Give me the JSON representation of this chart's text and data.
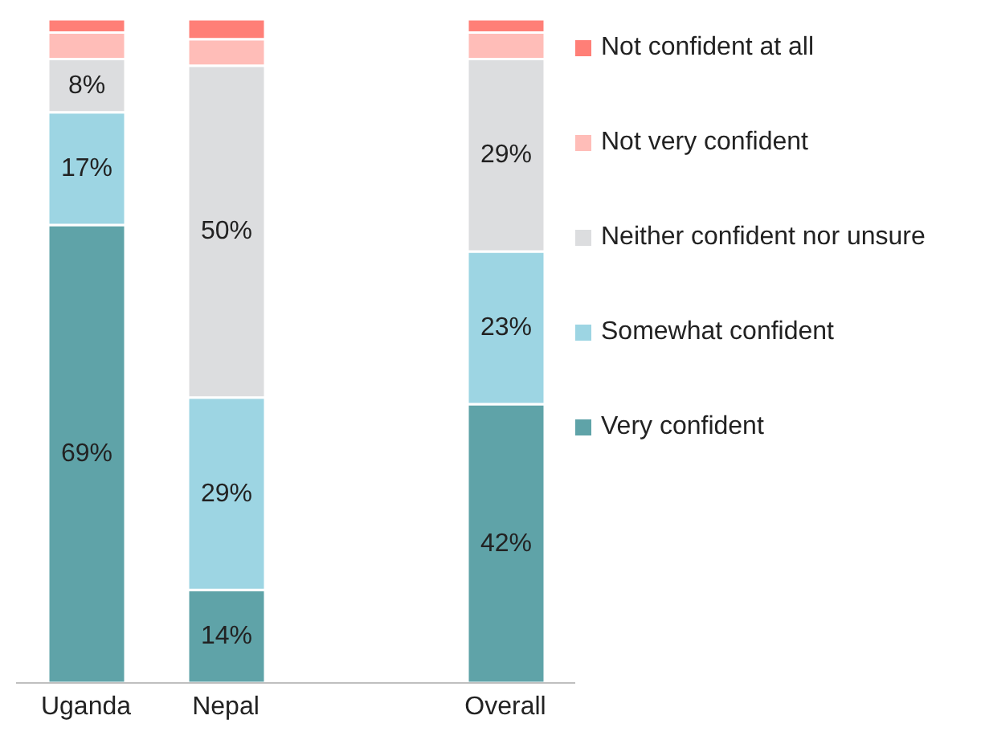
{
  "chart_data": {
    "type": "bar",
    "stacked": true,
    "legend": "right",
    "categories": [
      "Uganda",
      "Nepal",
      null,
      "Overall"
    ],
    "series": [
      {
        "name": "Very confident",
        "color": "#5fa3a8",
        "values": [
          69,
          14,
          null,
          42
        ],
        "value_labels": [
          "69%",
          "14%",
          null,
          "42%"
        ]
      },
      {
        "name": "Somewhat confident",
        "color": "#9dd5e3",
        "values": [
          17,
          29,
          null,
          23
        ],
        "value_labels": [
          "17%",
          "29%",
          null,
          "23%"
        ]
      },
      {
        "name": "Neither confident nor unsure",
        "color": "#dcdddf",
        "values": [
          8,
          50,
          null,
          29
        ],
        "value_labels": [
          "8%",
          "50%",
          null,
          "29%"
        ]
      },
      {
        "name": "Not very confident",
        "color": "#ffbdb8",
        "values": [
          4,
          4,
          null,
          4
        ],
        "value_labels": [
          null,
          null,
          null,
          null
        ]
      },
      {
        "name": "Not confident at all",
        "color": "#ff7f77",
        "values": [
          2,
          3,
          null,
          2
        ],
        "value_labels": [
          null,
          null,
          null,
          null
        ]
      }
    ]
  }
}
